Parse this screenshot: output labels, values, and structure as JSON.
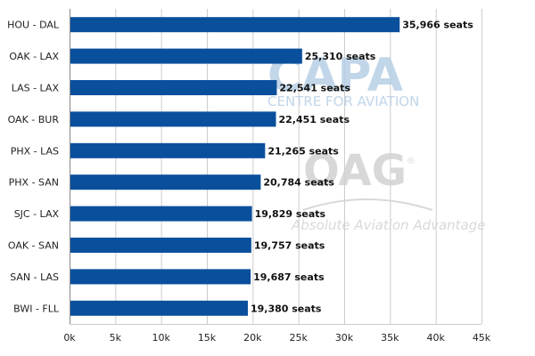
{
  "chart_data": {
    "type": "bar",
    "orientation": "horizontal",
    "categories": [
      "HOU - DAL",
      "OAK - LAX",
      "LAS - LAX",
      "OAK - BUR",
      "PHX - LAS",
      "PHX - SAN",
      "SJC - LAX",
      "OAK - SAN",
      "SAN - LAS",
      "BWI - FLL"
    ],
    "values": [
      35966,
      25310,
      22541,
      22451,
      21265,
      20784,
      19829,
      19757,
      19687,
      19380
    ],
    "value_labels": [
      "35,966 seats",
      "25,310 seats",
      "22,541 seats",
      "22,451 seats",
      "21,265 seats",
      "20,784 seats",
      "19,829 seats",
      "19,757 seats",
      "19,687 seats",
      "19,380 seats"
    ],
    "title": "",
    "xlabel": "",
    "ylabel": "",
    "xlim": [
      0,
      45000
    ],
    "x_ticks": [
      0,
      5000,
      10000,
      15000,
      20000,
      25000,
      30000,
      35000,
      40000,
      45000
    ],
    "x_tick_labels": [
      "0k",
      "5k",
      "10k",
      "15k",
      "20k",
      "25k",
      "30k",
      "35k",
      "40k",
      "45k"
    ],
    "grid": "vertical",
    "bar_color": "#0a4f9c"
  },
  "watermark": {
    "capa_logo": "CAPA",
    "capa_subtitle": "CENTRE FOR AVIATION",
    "oag_logo": "OAG",
    "oag_registered": "®",
    "oag_tagline": "Absolute Aviation Advantage",
    "capa_color": "#b7cfe6",
    "oag_color": "#d2d2d2"
  }
}
